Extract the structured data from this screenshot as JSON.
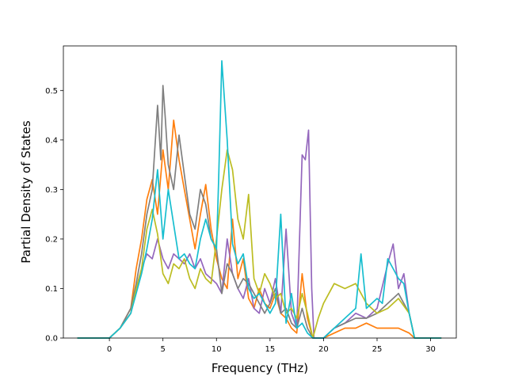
{
  "chart_data": {
    "type": "line",
    "xlabel": "Frequency (THz)",
    "ylabel": "Partial Density of States",
    "xlim": [
      -4.3,
      32.4
    ],
    "ylim": [
      0.0,
      0.59
    ],
    "xticks": [
      0,
      5,
      10,
      15,
      20,
      25,
      30
    ],
    "yticks": [
      0.0,
      0.1,
      0.2,
      0.3,
      0.4,
      0.5
    ],
    "xtick_labels": [
      "0",
      "5",
      "10",
      "15",
      "20",
      "25",
      "30"
    ],
    "ytick_labels": [
      "0.0",
      "0.1",
      "0.2",
      "0.3",
      "0.4",
      "0.5"
    ],
    "grid": false,
    "legend": "none",
    "series": [
      {
        "color": "#ff7f0e",
        "x": [
          -3,
          0,
          1,
          2,
          2.5,
          3,
          3.5,
          4,
          4.5,
          5,
          5.5,
          6,
          6.5,
          7,
          7.5,
          8,
          8.5,
          9,
          9.5,
          10,
          10.5,
          11,
          11.5,
          12,
          12.5,
          13,
          13.5,
          14,
          14.5,
          15,
          15.5,
          16,
          16.5,
          17,
          17.5,
          18,
          18.5,
          19,
          19.5,
          20,
          21,
          22,
          23,
          24,
          25,
          26,
          27,
          28,
          28.5,
          31
        ],
        "y": [
          0,
          0,
          0.02,
          0.06,
          0.14,
          0.2,
          0.28,
          0.32,
          0.25,
          0.38,
          0.3,
          0.44,
          0.36,
          0.3,
          0.24,
          0.18,
          0.25,
          0.31,
          0.22,
          0.16,
          0.12,
          0.1,
          0.24,
          0.12,
          0.16,
          0.08,
          0.06,
          0.1,
          0.07,
          0.06,
          0.09,
          0.05,
          0.04,
          0.02,
          0.01,
          0.13,
          0.04,
          0,
          0,
          0,
          0.01,
          0.02,
          0.02,
          0.03,
          0.02,
          0.02,
          0.02,
          0.01,
          0,
          0
        ]
      },
      {
        "color": "#9467bd",
        "x": [
          -3,
          0,
          1,
          2,
          2.5,
          3,
          3.5,
          4,
          4.5,
          5,
          5.5,
          6,
          6.5,
          7,
          7.5,
          8,
          8.5,
          9,
          9.5,
          10,
          10.5,
          11,
          11.5,
          12,
          12.5,
          13,
          13.5,
          14,
          14.5,
          15,
          15.5,
          16,
          16.5,
          17,
          17.5,
          18,
          18.3,
          18.6,
          18.9,
          19.1,
          20,
          21,
          22,
          23,
          24,
          25,
          26,
          26.5,
          27,
          27.5,
          28,
          28.5,
          31
        ],
        "y": [
          0,
          0,
          0.02,
          0.05,
          0.1,
          0.14,
          0.17,
          0.16,
          0.2,
          0.16,
          0.14,
          0.17,
          0.16,
          0.15,
          0.17,
          0.14,
          0.16,
          0.13,
          0.12,
          0.11,
          0.09,
          0.2,
          0.13,
          0.1,
          0.08,
          0.12,
          0.06,
          0.05,
          0.1,
          0.07,
          0.12,
          0.05,
          0.22,
          0.05,
          0.02,
          0.37,
          0.36,
          0.42,
          0.1,
          0,
          0,
          0.02,
          0.03,
          0.05,
          0.04,
          0.06,
          0.15,
          0.19,
          0.1,
          0.13,
          0.05,
          0,
          0
        ]
      },
      {
        "color": "#7f7f7f",
        "x": [
          -3,
          0,
          1,
          2,
          2.5,
          3,
          3.5,
          4,
          4.5,
          4.8,
          5,
          5.2,
          5.5,
          6,
          6.5,
          7,
          7.5,
          8,
          8.5,
          9,
          9.5,
          10,
          10.5,
          11,
          11.5,
          12,
          12.5,
          13,
          13.5,
          14,
          14.5,
          15,
          15.5,
          16,
          16.5,
          17,
          17.5,
          18,
          18.5,
          19,
          20,
          21,
          22,
          23,
          24,
          25,
          26,
          27,
          28,
          28.5,
          31
        ],
        "y": [
          0,
          0,
          0.02,
          0.06,
          0.11,
          0.17,
          0.25,
          0.3,
          0.47,
          0.36,
          0.51,
          0.45,
          0.35,
          0.3,
          0.41,
          0.33,
          0.25,
          0.22,
          0.3,
          0.27,
          0.2,
          0.18,
          0.09,
          0.15,
          0.13,
          0.1,
          0.12,
          0.11,
          0.09,
          0.07,
          0.05,
          0.07,
          0.1,
          0.05,
          0.06,
          0.03,
          0.02,
          0.06,
          0.02,
          0,
          0,
          0.02,
          0.03,
          0.04,
          0.04,
          0.05,
          0.07,
          0.09,
          0.05,
          0,
          0
        ]
      },
      {
        "color": "#bcbd22",
        "x": [
          -3,
          0,
          1,
          2,
          2.5,
          3,
          3.5,
          4,
          4.5,
          5,
          5.5,
          6,
          6.5,
          7,
          7.5,
          8,
          8.5,
          9,
          9.5,
          10,
          10.5,
          11,
          11.5,
          12,
          12.5,
          13,
          13.5,
          14,
          14.5,
          15,
          15.5,
          16,
          16.5,
          17,
          17.5,
          18,
          18.5,
          19,
          19.5,
          20,
          21,
          22,
          23,
          24,
          25,
          26,
          27,
          28,
          28.5,
          31
        ],
        "y": [
          0,
          0,
          0.02,
          0.05,
          0.1,
          0.14,
          0.22,
          0.26,
          0.21,
          0.13,
          0.11,
          0.15,
          0.14,
          0.16,
          0.12,
          0.1,
          0.14,
          0.12,
          0.11,
          0.2,
          0.3,
          0.38,
          0.34,
          0.24,
          0.2,
          0.29,
          0.12,
          0.09,
          0.13,
          0.11,
          0.08,
          0.09,
          0.05,
          0.06,
          0.04,
          0.09,
          0.05,
          0,
          0.04,
          0.07,
          0.11,
          0.1,
          0.11,
          0.07,
          0.05,
          0.06,
          0.08,
          0.05,
          0,
          0
        ]
      },
      {
        "color": "#17becf",
        "x": [
          -3,
          0,
          1,
          2,
          2.5,
          3,
          3.5,
          4,
          4.5,
          5,
          5.5,
          6,
          6.5,
          7,
          7.5,
          8,
          8.5,
          9,
          9.5,
          10,
          10.2,
          10.5,
          11,
          11.5,
          12,
          12.5,
          13,
          13.5,
          14,
          14.5,
          15,
          15.5,
          16,
          16.5,
          17,
          17.5,
          18,
          18.5,
          19,
          20,
          21,
          22,
          23,
          23.5,
          24,
          25,
          25.5,
          26,
          26.5,
          27,
          27.5,
          28,
          28.5,
          31
        ],
        "y": [
          0,
          0,
          0.02,
          0.05,
          0.09,
          0.13,
          0.18,
          0.24,
          0.34,
          0.2,
          0.3,
          0.23,
          0.16,
          0.17,
          0.15,
          0.14,
          0.2,
          0.24,
          0.2,
          0.18,
          0.32,
          0.56,
          0.4,
          0.19,
          0.15,
          0.17,
          0.1,
          0.08,
          0.09,
          0.07,
          0.05,
          0.07,
          0.25,
          0.03,
          0.09,
          0.02,
          0.03,
          0.01,
          0,
          0,
          0.02,
          0.04,
          0.06,
          0.17,
          0.06,
          0.08,
          0.07,
          0.16,
          0.14,
          0.12,
          0.11,
          0.05,
          0,
          0
        ]
      }
    ]
  }
}
